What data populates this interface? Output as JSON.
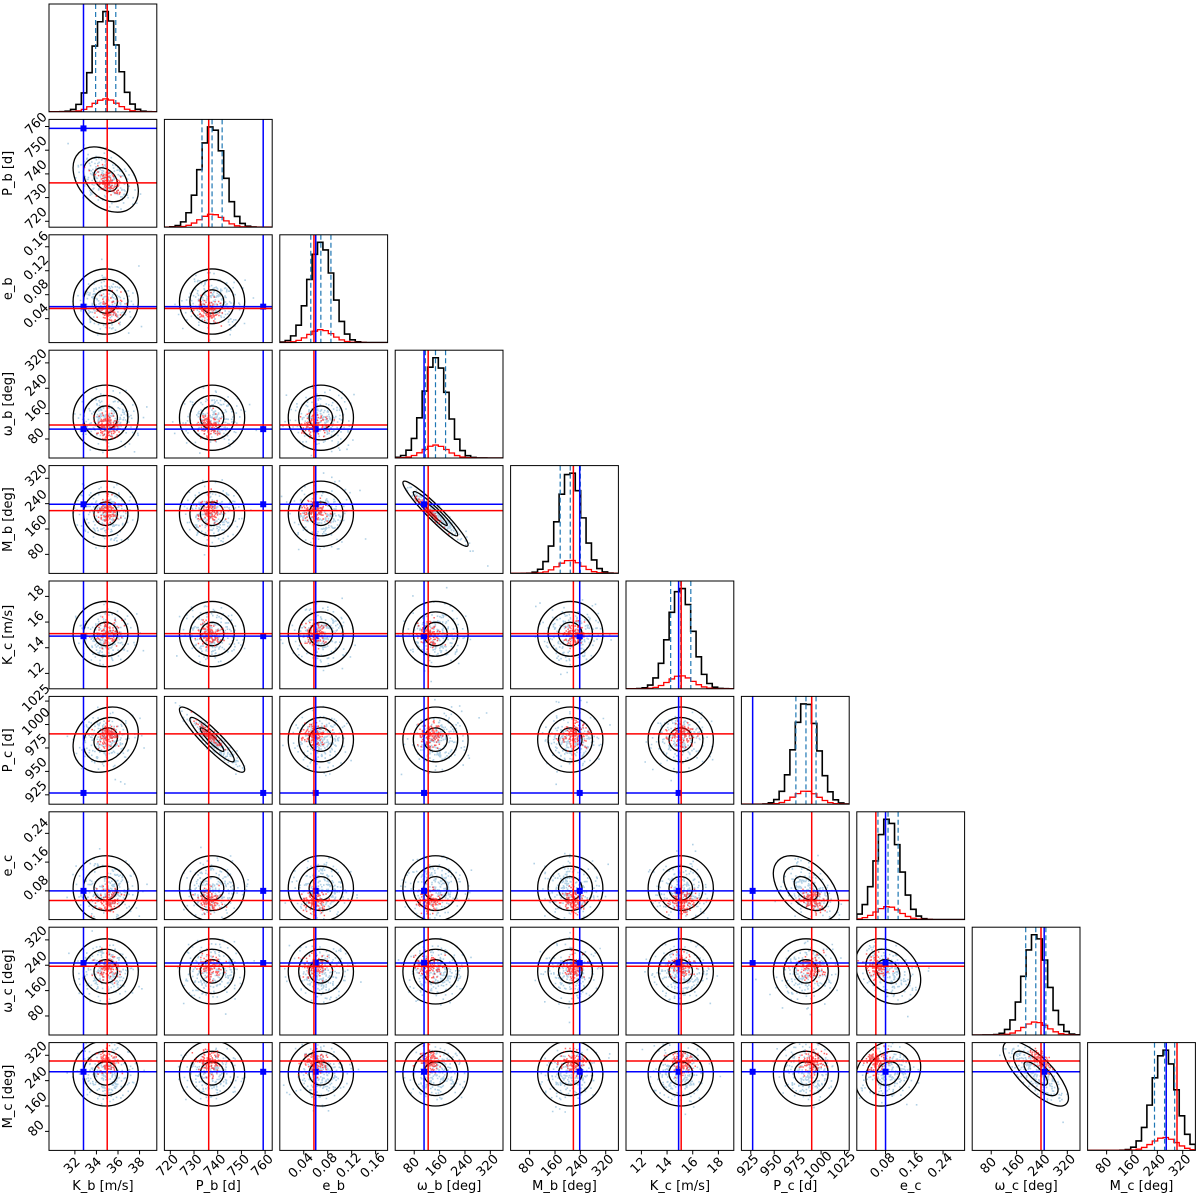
{
  "chart_data": {
    "type": "corner",
    "parameters": [
      {
        "key": "Kb",
        "label": "K_b [m/s]",
        "sym": "K",
        "sub": "b",
        "unit": "[m/s]",
        "range": [
          29.6,
          39.6
        ],
        "ticks": [
          32,
          34,
          36,
          38
        ],
        "truth": 32.8,
        "red_center": 35.0,
        "x_ticks_shown": true,
        "y_ticks_shown": false
      },
      {
        "key": "Pb",
        "label": "P_b [d]",
        "sym": "P",
        "sub": "b",
        "unit": "[d]",
        "range": [
          717.5,
          763.0
        ],
        "ticks": [
          720,
          730,
          740,
          750,
          760
        ],
        "truth": 759.2,
        "red_center": 736.2,
        "x_ticks_shown": true,
        "y_ticks_shown": true
      },
      {
        "key": "eb",
        "label": "e_b",
        "sym": "e",
        "sub": "b",
        "unit": "",
        "range": [
          0.0,
          0.18
        ],
        "ticks": [
          0.04,
          0.08,
          0.12,
          0.16
        ],
        "truth": 0.06,
        "red_center": 0.057,
        "x_ticks_shown": true,
        "y_ticks_shown": true
      },
      {
        "key": "wb",
        "label": "ω_b [deg]",
        "sym": "ω",
        "sub": "b",
        "unit": "[deg]",
        "range": [
          20,
          360
        ],
        "ticks": [
          80,
          160,
          240,
          320
        ],
        "truth": 111,
        "red_center": 124,
        "x_ticks_shown": true,
        "y_ticks_shown": true
      },
      {
        "key": "Mb",
        "label": "M_b [deg]",
        "sym": "M",
        "sub": "b",
        "unit": "[deg]",
        "range": [
          20,
          360
        ],
        "ticks": [
          80,
          160,
          240,
          320
        ],
        "truth": 238,
        "red_center": 218,
        "x_ticks_shown": true,
        "y_ticks_shown": true
      },
      {
        "key": "Kc",
        "label": "K_c [m/s]",
        "sym": "K",
        "sub": "c",
        "unit": "[m/s]",
        "range": [
          10.8,
          19.2
        ],
        "ticks": [
          12,
          14,
          16,
          18
        ],
        "truth": 14.9,
        "red_center": 15.1,
        "x_ticks_shown": true,
        "y_ticks_shown": true
      },
      {
        "key": "Pc",
        "label": "P_c [d]",
        "sym": "P",
        "sub": "c",
        "unit": "[d]",
        "range": [
          915,
          1030
        ],
        "ticks": [
          925,
          950,
          975,
          1000,
          1025
        ],
        "truth": 927,
        "red_center": 990,
        "x_ticks_shown": true,
        "y_ticks_shown": true
      },
      {
        "key": "ec",
        "label": "e_c",
        "sym": "e",
        "sub": "c",
        "unit": "",
        "range": [
          0.0,
          0.3
        ],
        "ticks": [
          0.08,
          0.16,
          0.24
        ],
        "truth": 0.08,
        "red_center": 0.053,
        "x_ticks_shown": true,
        "y_ticks_shown": true
      },
      {
        "key": "wc",
        "label": "ω_c [deg]",
        "sym": "ω",
        "sub": "c",
        "unit": "[deg]",
        "range": [
          20,
          360
        ],
        "ticks": [
          80,
          160,
          240,
          320
        ],
        "truth": 247,
        "red_center": 237,
        "x_ticks_shown": true,
        "y_ticks_shown": true
      },
      {
        "key": "Mc",
        "label": "M_c [deg]",
        "sym": "M",
        "sub": "c",
        "unit": "[deg]",
        "range": [
          20,
          360
        ],
        "ticks": [
          80,
          160,
          240,
          320
        ],
        "truth": 268,
        "red_center": 302,
        "x_ticks_shown": true,
        "y_ticks_shown": true
      }
    ],
    "colors": {
      "samples": "#1f77b4",
      "contours": "#000000",
      "red_subset": "#ff0000",
      "truth": "#0000ff",
      "quantiles": "#1f77b4"
    },
    "grid": false,
    "legend": "none"
  }
}
